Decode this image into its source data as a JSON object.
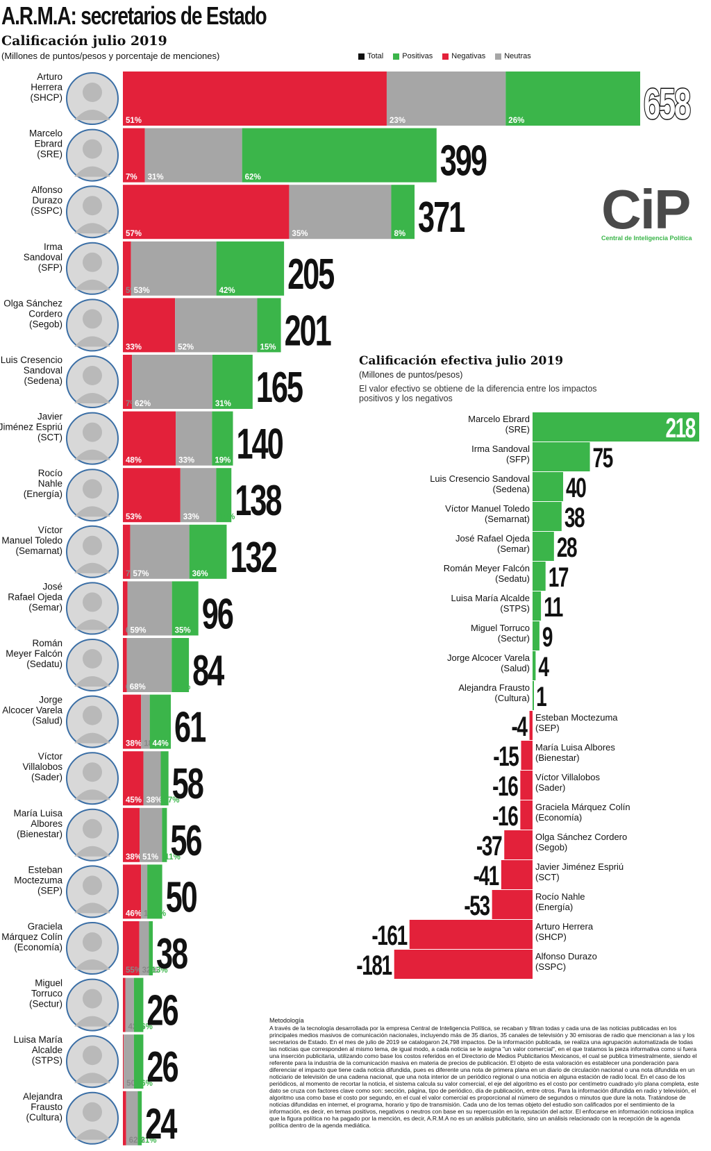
{
  "header": {
    "title": "A.R.M.A: secretarios de Estado",
    "subtitle": "Calificación julio 2019",
    "units": "(Millones de puntos/pesos y porcentaje de menciones)"
  },
  "legend": [
    {
      "label": "Total",
      "color": "#111111"
    },
    {
      "label": "Positivas",
      "color": "#3bb54a"
    },
    {
      "label": "Negativas",
      "color": "#e3213a"
    },
    {
      "label": "Neutras",
      "color": "#a6a6a6"
    }
  ],
  "colors": {
    "negative": "#e3213a",
    "neutral": "#a6a6a6",
    "positive": "#3bb54a",
    "text": "#111111"
  },
  "logo": {
    "text": "CiP",
    "tagline": "Central de Inteligencia Política"
  },
  "section2": {
    "title": "Calificación efectiva julio 2019",
    "units": "(Millones de puntos/pesos)",
    "note": "El valor efectivo se obtiene de la diferencia entre los impactos positivos y los negativos"
  },
  "methodology": {
    "title": "Metodología",
    "body": "A través de la tecnología desarrollada por la empresa Central de Inteligencia Política, se recaban y filtran todas y cada una de las noticias publicadas en los principales medios masivos de comunicación nacionales, incluyendo más de 35 diarios, 35 canales de televisión y 30 emisoras de radio que mencionan a las y los secretarios de Estado. En el mes de julio de 2019 se catalogaron 24,798 impactos. De la información publicada, se realiza una agrupación automatizada de todas las noticias que corresponden al mismo tema, de igual modo, a cada noticia se le asigna \"un valor comercial\", en el que tratamos la pieza informativa como si fuera una inserción publicitaria, utilizando como base los costos referidos en el Directorio de Medios Publicitarios Mexicanos, el cual se publica trimestralmente, siendo el referente para la industria de la comunicación masiva en materia de precios de publicación. El objeto de esta valoración es establecer una ponderación para diferenciar el impacto que tiene cada noticia difundida, pues es diferente una nota de primera plana en un diario de circulación nacional o una nota difundida en un noticiario de televisión de una cadena nacional, que una nota interior de un periódico regional o una noticia en alguna estación de radio local. En el caso de los periódicos, al momento de recortar la noticia, el sistema calcula su valor comercial, el eje del algoritmo es el costo por centímetro cuadrado y/o plana completa, este dato se cruza con factores clave como son: sección, página, tipo de periódico, día de publicación, entre otros. Para la información difundida en radio y televisión, el algoritmo usa como base el costo por segundo, en el cual el valor comercial es proporcional al número de segundos o minutos que dure la nota. Tratándose de noticias difundidas en internet, el programa, horario y tipo de transmisión. Cada uno de los temas objeto del estudio son calificados por el sentimiento de la información, es decir, en temas positivos, negativos o neutros con base en su repercusión en la reputación del actor. El enfocarse en información noticiosa implica que la figura política no ha pagado por la mención, es decir, A.R.M.A no es un análisis publicitario, sino un análisis relacionado con la recepción de la agenda política dentro de la agenda mediática."
  },
  "chart_data": [
    {
      "type": "bar",
      "orientation": "horizontal",
      "stacked": true,
      "title": "Calificación julio 2019",
      "subtitle": "(Millones de puntos/pesos y porcentaje de menciones)",
      "segment_order": [
        "Negativas",
        "Neutras",
        "Positivas"
      ],
      "rows": [
        {
          "name_lines": [
            "Arturo",
            "Herrera",
            "(SHCP)"
          ],
          "total": 658,
          "shares": [
            51,
            23,
            26
          ],
          "labels": [
            "51%",
            "23%",
            "26%"
          ]
        },
        {
          "name_lines": [
            "Marcelo",
            "Ebrard",
            "(SRE)"
          ],
          "total": 399,
          "shares": [
            7,
            31,
            62
          ],
          "labels": [
            "7%",
            "31%",
            "62%"
          ]
        },
        {
          "name_lines": [
            "Alfonso",
            "Durazo",
            "(SSPC)"
          ],
          "total": 371,
          "shares": [
            57,
            35,
            8
          ],
          "labels": [
            "57%",
            "35%",
            "8%"
          ]
        },
        {
          "name_lines": [
            "Irma",
            "Sandoval",
            "(SFP)"
          ],
          "total": 205,
          "shares": [
            5,
            53,
            42
          ],
          "labels": [
            "5%",
            "53%",
            "42%"
          ]
        },
        {
          "name_lines": [
            "Olga Sánchez",
            "Cordero",
            "(Segob)"
          ],
          "total": 201,
          "shares": [
            33,
            52,
            15
          ],
          "labels": [
            "33%",
            "52%",
            "15%"
          ]
        },
        {
          "name_lines": [
            "Luis Cresencio",
            "Sandoval",
            "(Sedena)"
          ],
          "total": 165,
          "shares": [
            7,
            62,
            31
          ],
          "labels": [
            "7%",
            "62%",
            "31%"
          ]
        },
        {
          "name_lines": [
            "Javier",
            "Jiménez Espriú",
            "(SCT)"
          ],
          "total": 140,
          "shares": [
            48,
            33,
            19
          ],
          "labels": [
            "48%",
            "33%",
            "19%"
          ]
        },
        {
          "name_lines": [
            "Rocío",
            "Nahle",
            "(Energía)"
          ],
          "total": 138,
          "shares": [
            53,
            33,
            14
          ],
          "labels": [
            "53%",
            "33%",
            "14%"
          ]
        },
        {
          "name_lines": [
            "Víctor",
            "Manuel Toledo",
            "(Semarnat)"
          ],
          "total": 132,
          "shares": [
            7,
            57,
            36
          ],
          "labels": [
            "7%",
            "57%",
            "36%"
          ]
        },
        {
          "name_lines": [
            "José",
            "Rafael Ojeda",
            "(Semar)"
          ],
          "total": 96,
          "shares": [
            6,
            59,
            35
          ],
          "labels": [
            "6%",
            "59%",
            "35%"
          ]
        },
        {
          "name_lines": [
            "Román",
            "Meyer Falcón",
            "(Sedatu)"
          ],
          "total": 84,
          "shares": [
            6,
            68,
            26
          ],
          "labels": [
            "6%",
            "68%",
            "26%"
          ]
        },
        {
          "name_lines": [
            "Jorge",
            "Alcocer Varela",
            "(Salud)"
          ],
          "total": 61,
          "shares": [
            38,
            18,
            44
          ],
          "labels": [
            "38%",
            "18%",
            "44%"
          ]
        },
        {
          "name_lines": [
            "Víctor",
            "Villalobos",
            "(Sader)"
          ],
          "total": 58,
          "shares": [
            45,
            38,
            17
          ],
          "labels": [
            "45%",
            "38%",
            "17%"
          ]
        },
        {
          "name_lines": [
            "María Luisa",
            "Albores",
            "(Bienestar)"
          ],
          "total": 56,
          "shares": [
            38,
            51,
            11
          ],
          "labels": [
            "38%",
            "51%",
            "11%"
          ]
        },
        {
          "name_lines": [
            "Esteban",
            "Moctezuma",
            "(SEP)"
          ],
          "total": 50,
          "shares": [
            46,
            16,
            38
          ],
          "labels": [
            "46%",
            "16%",
            "38%"
          ]
        },
        {
          "name_lines": [
            "Graciela",
            "Márquez Colín",
            "(Economía)"
          ],
          "total": 38,
          "shares": [
            55,
            32,
            13
          ],
          "labels": [
            "55%",
            "32%",
            "13%"
          ]
        },
        {
          "name_lines": [
            "Miguel",
            "Torruco",
            "(Sectur)"
          ],
          "total": 26,
          "shares": [
            12,
            42,
            46
          ],
          "labels": [
            "12%",
            "42%",
            "46%"
          ]
        },
        {
          "name_lines": [
            "Luisa María",
            "Alcalde",
            "(STPS)"
          ],
          "total": 26,
          "shares": [
            4,
            50,
            46
          ],
          "labels": [
            "4%",
            "50%",
            "46%"
          ]
        },
        {
          "name_lines": [
            "Alejandra",
            "Frausto",
            "(Cultura)"
          ],
          "total": 24,
          "shares": [
            17,
            62,
            21
          ],
          "labels": [
            "17%",
            "62%",
            "21%"
          ]
        }
      ]
    },
    {
      "type": "bar",
      "orientation": "horizontal",
      "diverging": true,
      "title": "Calificación efectiva julio 2019",
      "subtitle": "(Millones de puntos/pesos)",
      "rows": [
        {
          "name_lines": [
            "Marcelo Ebrard",
            "(SRE)"
          ],
          "value": 218,
          "label": "218"
        },
        {
          "name_lines": [
            "Irma Sandoval",
            "(SFP)"
          ],
          "value": 75,
          "label": "75"
        },
        {
          "name_lines": [
            "Luis Cresencio Sandoval",
            "(Sedena)"
          ],
          "value": 40,
          "label": "40"
        },
        {
          "name_lines": [
            "Víctor Manuel Toledo",
            "(Semarnat)"
          ],
          "value": 38,
          "label": "38"
        },
        {
          "name_lines": [
            "José Rafael Ojeda",
            "(Semar)"
          ],
          "value": 28,
          "label": "28"
        },
        {
          "name_lines": [
            "Román Meyer Falcón",
            "(Sedatu)"
          ],
          "value": 17,
          "label": "17"
        },
        {
          "name_lines": [
            "Luisa María Alcalde",
            "(STPS)"
          ],
          "value": 11,
          "label": "11"
        },
        {
          "name_lines": [
            "Miguel Torruco",
            "(Sectur)"
          ],
          "value": 9,
          "label": "9"
        },
        {
          "name_lines": [
            "Jorge Alcocer Varela",
            "(Salud)"
          ],
          "value": 4,
          "label": "4"
        },
        {
          "name_lines": [
            "Alejandra Frausto",
            "(Cultura)"
          ],
          "value": 1,
          "label": "1"
        },
        {
          "name_lines": [
            "Esteban Moctezuma",
            "(SEP)"
          ],
          "value": -4,
          "label": "-4"
        },
        {
          "name_lines": [
            "María Luisa Albores",
            "(Bienestar)"
          ],
          "value": -15,
          "label": "-15"
        },
        {
          "name_lines": [
            "Víctor Villalobos",
            "(Sader)"
          ],
          "value": -16,
          "label": "-16"
        },
        {
          "name_lines": [
            "Graciela Márquez Colín",
            "(Economía)"
          ],
          "value": -16,
          "label": "-16"
        },
        {
          "name_lines": [
            "Olga Sánchez Cordero",
            "(Segob)"
          ],
          "value": -37,
          "label": "-37"
        },
        {
          "name_lines": [
            "Javier Jiménez Espriú",
            "(SCT)"
          ],
          "value": -41,
          "label": "-41"
        },
        {
          "name_lines": [
            "Rocío Nahle",
            "(Energía)"
          ],
          "value": -53,
          "label": "-53"
        },
        {
          "name_lines": [
            "Arturo Herrera",
            "(SHCP)"
          ],
          "value": -161,
          "label": "-161"
        },
        {
          "name_lines": [
            "Alfonso Durazo",
            "(SSPC)"
          ],
          "value": -181,
          "label": "-181"
        }
      ]
    }
  ]
}
